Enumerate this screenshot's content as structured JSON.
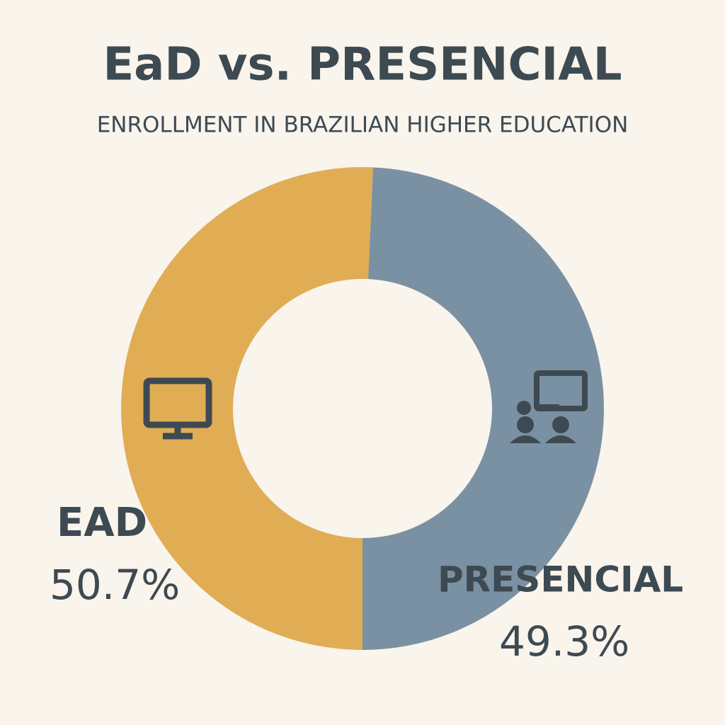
{
  "chart_data": {
    "type": "donut",
    "title": "EaD vs. PRESENCIAL",
    "subtitle": "ENROLLMENT IN BRAZILIAN HIGHER EDUCATION",
    "categories": [
      "EAD",
      "PRESENCIAL"
    ],
    "values": [
      50.7,
      49.3
    ],
    "value_labels": [
      "50.7%",
      "49.3%"
    ],
    "colors": [
      "#e0ad55",
      "#7a91a3"
    ]
  }
}
